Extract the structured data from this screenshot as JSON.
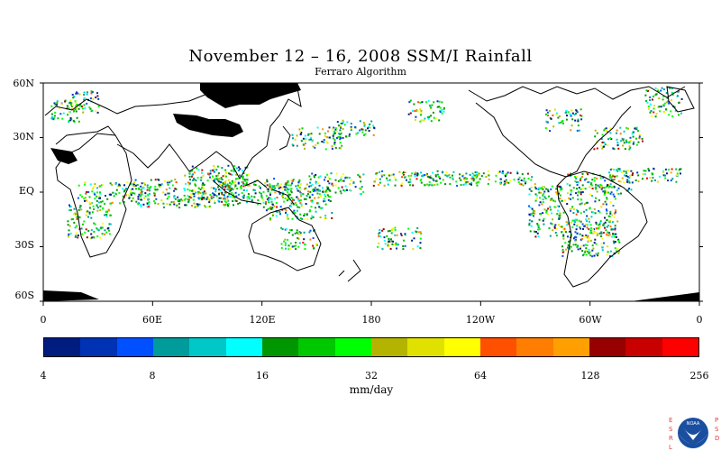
{
  "title": "November 12 – 16, 2008 SSM/I Rainfall",
  "subtitle": "Ferraro Algorithm",
  "map": {
    "lon_min": 0,
    "lon_max": 360,
    "lat_min": -60,
    "lat_max": 60,
    "lat_labels": [
      "60N",
      "30N",
      "EQ",
      "30S",
      "60S"
    ],
    "lat_values": [
      60,
      30,
      0,
      -30,
      -60
    ],
    "lon_labels": [
      "0",
      "60E",
      "120E",
      "180",
      "120W",
      "60W",
      "0"
    ],
    "lon_values": [
      0,
      60,
      120,
      180,
      240,
      300,
      360
    ],
    "land_color": "#ffffff",
    "coast_color": "#000000",
    "sea_ice_color": "#000000"
  },
  "colorbar": {
    "units": "mm/day",
    "tick_labels": [
      "4",
      "8",
      "16",
      "32",
      "64",
      "128",
      "256"
    ],
    "colors": [
      "#001c7e",
      "#0032b4",
      "#0050ff",
      "#009b9b",
      "#00c8c8",
      "#00ffff",
      "#009600",
      "#00c800",
      "#00ff00",
      "#b4b400",
      "#e1e100",
      "#ffff00",
      "#ff5000",
      "#ff7d00",
      "#ffa000",
      "#960000",
      "#c80000",
      "#ff0000"
    ]
  },
  "logo": {
    "left_text": "ESRL",
    "right_text": "PSD",
    "center_text": "NOAA"
  }
}
